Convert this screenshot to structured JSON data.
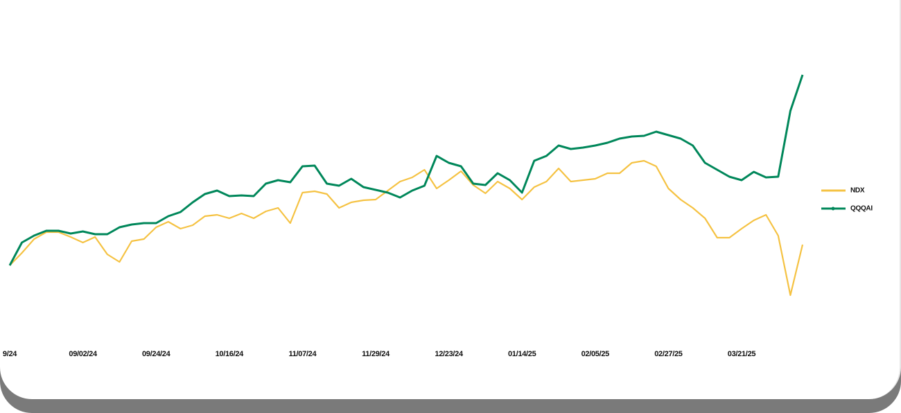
{
  "chart_data": {
    "type": "line",
    "categories": [
      "9/24",
      null,
      null,
      null,
      null,
      null,
      "09/02/24",
      null,
      null,
      null,
      null,
      null,
      "09/24/24",
      null,
      null,
      null,
      null,
      null,
      "10/16/24",
      null,
      null,
      null,
      null,
      null,
      "11/07/24",
      null,
      null,
      null,
      null,
      null,
      "11/29/24",
      null,
      null,
      null,
      null,
      null,
      "12/23/24",
      null,
      null,
      null,
      null,
      null,
      "01/14/25",
      null,
      null,
      null,
      null,
      null,
      "02/05/25",
      null,
      null,
      null,
      null,
      null,
      "02/27/25",
      null,
      null,
      null,
      null,
      null,
      "03/21/25",
      null,
      null,
      null,
      null,
      null
    ],
    "series": [
      {
        "name": "NDX",
        "color": "#f5c242",
        "values": [
          8.7,
          10.5,
          12.5,
          13.5,
          13.5,
          12.8,
          12,
          12.8,
          10.3,
          9.2,
          12.2,
          12.5,
          14.2,
          15,
          14,
          14.5,
          15.8,
          16,
          15.5,
          16.2,
          15.5,
          16.5,
          17,
          14.8,
          19.2,
          19.4,
          19,
          17,
          17.8,
          18.1,
          18.2,
          19.5,
          20.8,
          21.4,
          22.5,
          19.8,
          21,
          22.3,
          20.3,
          19.1,
          20.8,
          19.8,
          18.2,
          20,
          20.8,
          22.7,
          20.8,
          21,
          21.2,
          22,
          22,
          23.5,
          23.8,
          23,
          19.8,
          18.2,
          17,
          15.5,
          12.7,
          12.7,
          14,
          15.2,
          16,
          13,
          4.4,
          11.7
        ]
      },
      {
        "name": "QQQAI",
        "color": "#00875a",
        "values": [
          8.7,
          12,
          13,
          13.7,
          13.7,
          13.3,
          13.6,
          13.2,
          13.2,
          14.2,
          14.6,
          14.8,
          14.8,
          15.8,
          16.4,
          17.8,
          19,
          19.5,
          18.7,
          18.8,
          18.7,
          20.5,
          21,
          20.7,
          23,
          23.1,
          20.5,
          20.2,
          21.2,
          20,
          19.6,
          19.2,
          18.5,
          19.5,
          20.2,
          24.5,
          23.5,
          23,
          20.5,
          20.3,
          22,
          21,
          19.2,
          23.8,
          24.5,
          26,
          25.5,
          25.7,
          26,
          26.4,
          27,
          27.3,
          27.4,
          28,
          27.5,
          27,
          26,
          23.5,
          22.5,
          21.5,
          21,
          22.2,
          21.4,
          21.5,
          31,
          36.2
        ]
      }
    ],
    "ylim": [
      0,
      40
    ],
    "legend": "right"
  }
}
